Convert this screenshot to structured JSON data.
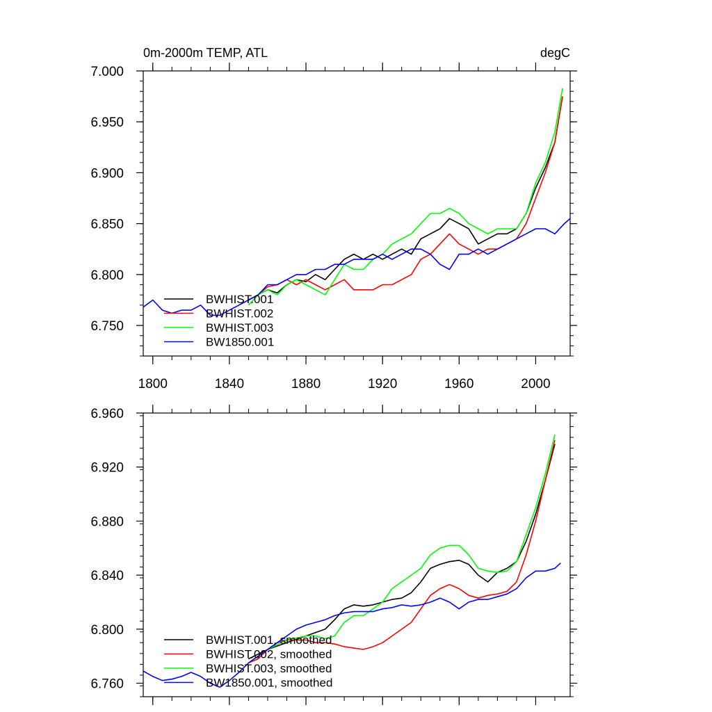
{
  "chart_data": [
    {
      "type": "line",
      "title_left": "0m-2000m TEMP, ATL",
      "title_right": "degC",
      "xlim": [
        1795,
        2018
      ],
      "ylim": [
        6.72,
        7.0
      ],
      "yticks": [
        6.75,
        6.8,
        6.85,
        6.9,
        6.95,
        7.0
      ],
      "ytick_labels": [
        "6.750",
        "6.800",
        "6.850",
        "6.900",
        "6.950",
        "7.000"
      ],
      "xticks": [
        1800,
        1840,
        1880,
        1920,
        1960,
        2000
      ],
      "xtick_labels": [
        "1800",
        "1840",
        "1880",
        "1920",
        "1960",
        "2000"
      ],
      "legend_position": "lower-left",
      "series": [
        {
          "name": "BWHIST.001",
          "color": "#000000",
          "x": [
            1850,
            1855,
            1860,
            1865,
            1870,
            1875,
            1880,
            1885,
            1890,
            1895,
            1900,
            1905,
            1910,
            1915,
            1920,
            1925,
            1930,
            1935,
            1940,
            1945,
            1950,
            1955,
            1960,
            1965,
            1970,
            1975,
            1980,
            1985,
            1990,
            1995,
            2000,
            2005,
            2010,
            2014
          ],
          "y": [
            6.775,
            6.78,
            6.785,
            6.782,
            6.79,
            6.795,
            6.793,
            6.8,
            6.795,
            6.805,
            6.815,
            6.82,
            6.815,
            6.82,
            6.815,
            6.82,
            6.825,
            6.82,
            6.835,
            6.84,
            6.845,
            6.855,
            6.85,
            6.845,
            6.83,
            6.835,
            6.84,
            6.84,
            6.845,
            6.86,
            6.885,
            6.905,
            6.93,
            6.975
          ]
        },
        {
          "name": "BWHIST.002",
          "color": "#ff0000",
          "x": [
            1850,
            1855,
            1860,
            1865,
            1870,
            1875,
            1880,
            1885,
            1890,
            1895,
            1900,
            1905,
            1910,
            1915,
            1920,
            1925,
            1930,
            1935,
            1940,
            1945,
            1950,
            1955,
            1960,
            1965,
            1970,
            1975,
            1980,
            1985,
            1990,
            1995,
            2000,
            2005,
            2010,
            2014
          ],
          "y": [
            6.775,
            6.78,
            6.788,
            6.79,
            6.795,
            6.79,
            6.795,
            6.79,
            6.785,
            6.79,
            6.795,
            6.785,
            6.785,
            6.785,
            6.79,
            6.79,
            6.795,
            6.8,
            6.815,
            6.82,
            6.83,
            6.84,
            6.83,
            6.825,
            6.82,
            6.825,
            6.825,
            6.83,
            6.835,
            6.85,
            6.875,
            6.9,
            6.93,
            6.975
          ]
        },
        {
          "name": "BWHIST.003",
          "color": "#00ff00",
          "x": [
            1850,
            1855,
            1860,
            1865,
            1870,
            1875,
            1880,
            1885,
            1890,
            1895,
            1900,
            1905,
            1910,
            1915,
            1920,
            1925,
            1930,
            1935,
            1940,
            1945,
            1950,
            1955,
            1960,
            1965,
            1970,
            1975,
            1980,
            1985,
            1990,
            1995,
            2000,
            2005,
            2010,
            2014
          ],
          "y": [
            6.77,
            6.78,
            6.785,
            6.78,
            6.79,
            6.795,
            6.79,
            6.785,
            6.78,
            6.795,
            6.81,
            6.805,
            6.805,
            6.815,
            6.82,
            6.83,
            6.835,
            6.84,
            6.85,
            6.86,
            6.86,
            6.865,
            6.86,
            6.85,
            6.845,
            6.84,
            6.845,
            6.845,
            6.845,
            6.86,
            6.89,
            6.91,
            6.94,
            6.983
          ]
        },
        {
          "name": "BW1850.001",
          "color": "#0000ff",
          "x": [
            1795,
            1800,
            1805,
            1810,
            1815,
            1820,
            1825,
            1830,
            1835,
            1840,
            1845,
            1850,
            1855,
            1860,
            1865,
            1870,
            1875,
            1880,
            1885,
            1890,
            1895,
            1900,
            1905,
            1910,
            1915,
            1920,
            1925,
            1930,
            1935,
            1940,
            1945,
            1950,
            1955,
            1960,
            1965,
            1970,
            1975,
            1980,
            1985,
            1990,
            1995,
            2000,
            2005,
            2010,
            2015,
            2018
          ],
          "y": [
            6.768,
            6.775,
            6.765,
            6.762,
            6.765,
            6.765,
            6.77,
            6.76,
            6.76,
            6.765,
            6.77,
            6.775,
            6.78,
            6.79,
            6.79,
            6.795,
            6.8,
            6.8,
            6.805,
            6.805,
            6.81,
            6.81,
            6.815,
            6.815,
            6.815,
            6.82,
            6.815,
            6.82,
            6.825,
            6.825,
            6.82,
            6.81,
            6.805,
            6.82,
            6.82,
            6.825,
            6.82,
            6.825,
            6.83,
            6.835,
            6.84,
            6.845,
            6.845,
            6.84,
            6.85,
            6.855
          ]
        }
      ]
    },
    {
      "type": "line",
      "xlim": [
        1795,
        2018
      ],
      "ylim": [
        6.75,
        6.96
      ],
      "yticks": [
        6.76,
        6.8,
        6.84,
        6.88,
        6.92,
        6.96
      ],
      "ytick_labels": [
        "6.760",
        "6.800",
        "6.840",
        "6.880",
        "6.920",
        "6.960"
      ],
      "xticks": [
        1800,
        1840,
        1880,
        1920,
        1960,
        2000
      ],
      "legend_position": "lower-left",
      "series": [
        {
          "name": "BWHIST.001, smoothed",
          "color": "#000000",
          "x": [
            1850,
            1860,
            1870,
            1880,
            1890,
            1895,
            1900,
            1905,
            1910,
            1915,
            1920,
            1925,
            1930,
            1935,
            1940,
            1945,
            1950,
            1955,
            1960,
            1965,
            1970,
            1975,
            1980,
            1985,
            1990,
            1995,
            2000,
            2005,
            2010
          ],
          "y": [
            6.778,
            6.785,
            6.79,
            6.795,
            6.8,
            6.807,
            6.815,
            6.818,
            6.817,
            6.818,
            6.82,
            6.822,
            6.823,
            6.827,
            6.835,
            6.845,
            6.848,
            6.85,
            6.851,
            6.848,
            6.84,
            6.835,
            6.842,
            6.845,
            6.85,
            6.865,
            6.885,
            6.91,
            6.937
          ]
        },
        {
          "name": "BWHIST.002, smoothed",
          "color": "#ff0000",
          "x": [
            1850,
            1855,
            1860,
            1865,
            1870,
            1875,
            1880,
            1885,
            1890,
            1895,
            1900,
            1905,
            1910,
            1915,
            1920,
            1925,
            1930,
            1935,
            1940,
            1945,
            1950,
            1955,
            1960,
            1965,
            1970,
            1975,
            1980,
            1985,
            1990,
            1995,
            2000,
            2005,
            2010
          ],
          "y": [
            6.775,
            6.778,
            6.785,
            6.79,
            6.792,
            6.792,
            6.792,
            6.79,
            6.79,
            6.789,
            6.787,
            6.786,
            6.785,
            6.787,
            6.79,
            6.795,
            6.8,
            6.805,
            6.815,
            6.825,
            6.83,
            6.833,
            6.83,
            6.825,
            6.823,
            6.825,
            6.826,
            6.828,
            6.835,
            6.855,
            6.88,
            6.91,
            6.94
          ]
        },
        {
          "name": "BWHIST.003, smoothed",
          "color": "#00ff00",
          "x": [
            1850,
            1860,
            1870,
            1880,
            1885,
            1890,
            1895,
            1900,
            1905,
            1910,
            1915,
            1920,
            1925,
            1930,
            1935,
            1940,
            1945,
            1950,
            1955,
            1960,
            1965,
            1970,
            1975,
            1980,
            1985,
            1990,
            1995,
            2000,
            2005,
            2010
          ],
          "y": [
            6.775,
            6.785,
            6.792,
            6.795,
            6.795,
            6.793,
            6.795,
            6.805,
            6.81,
            6.81,
            6.815,
            6.82,
            6.83,
            6.835,
            6.84,
            6.845,
            6.855,
            6.86,
            6.862,
            6.862,
            6.855,
            6.845,
            6.843,
            6.842,
            6.843,
            6.85,
            6.87,
            6.89,
            6.915,
            6.944
          ]
        },
        {
          "name": "BW1850.001, smoothed",
          "color": "#0000ff",
          "x": [
            1795,
            1800,
            1805,
            1810,
            1815,
            1820,
            1825,
            1830,
            1835,
            1840,
            1845,
            1850,
            1855,
            1860,
            1865,
            1870,
            1875,
            1880,
            1885,
            1890,
            1895,
            1900,
            1905,
            1910,
            1915,
            1920,
            1925,
            1930,
            1935,
            1940,
            1945,
            1950,
            1955,
            1960,
            1965,
            1970,
            1975,
            1980,
            1985,
            1990,
            1995,
            2000,
            2005,
            2010,
            2013
          ],
          "y": [
            6.769,
            6.765,
            6.762,
            6.763,
            6.765,
            6.768,
            6.765,
            6.76,
            6.757,
            6.762,
            6.768,
            6.775,
            6.78,
            6.785,
            6.79,
            6.795,
            6.8,
            6.803,
            6.805,
            6.807,
            6.81,
            6.812,
            6.813,
            6.813,
            6.813,
            6.815,
            6.816,
            6.818,
            6.817,
            6.818,
            6.82,
            6.823,
            6.82,
            6.815,
            6.82,
            6.822,
            6.822,
            6.824,
            6.826,
            6.83,
            6.838,
            6.843,
            6.843,
            6.845,
            6.849
          ]
        }
      ]
    }
  ]
}
